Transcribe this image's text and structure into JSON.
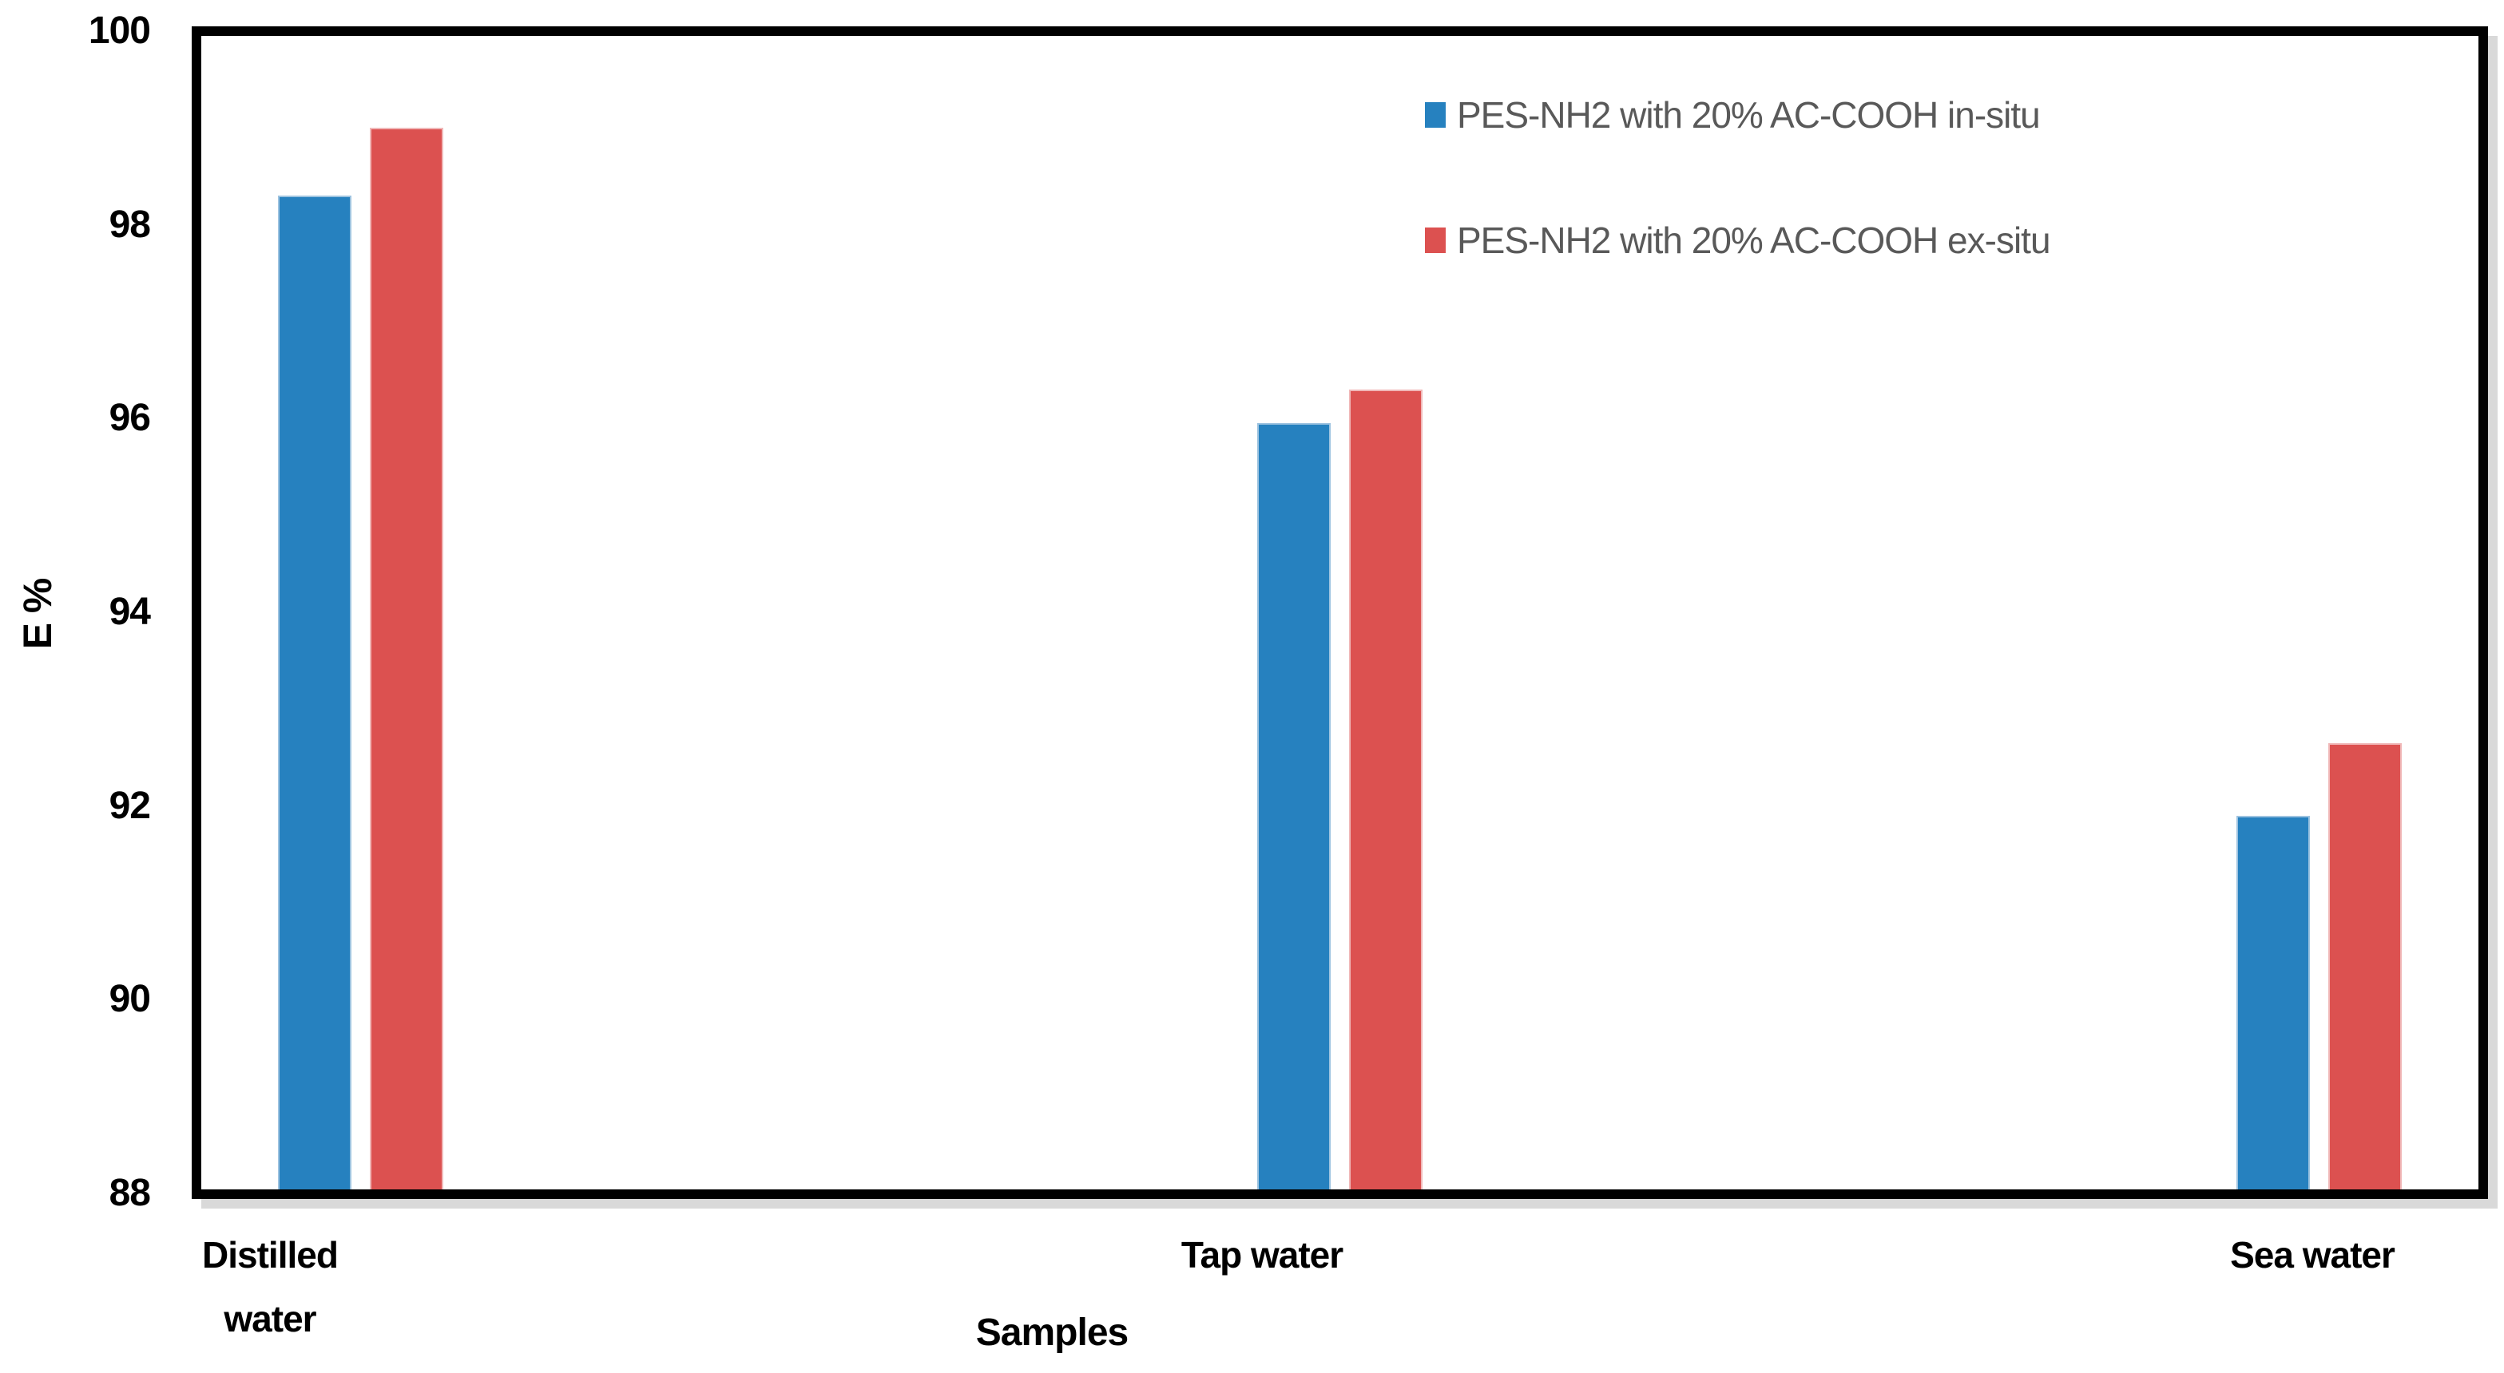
{
  "chart_data": {
    "type": "bar",
    "title": "",
    "xlabel": "Samples",
    "ylabel": "E %",
    "categories": [
      "Distilled water",
      "Tap water",
      "Sea water"
    ],
    "series": [
      {
        "name": "PES-NH2 with 20% AC-COOH in-situ",
        "color": "#2681BF",
        "edge_color": "#9DC3E0",
        "values": [
          98.3,
          95.95,
          91.9
        ]
      },
      {
        "name": "PES-NH2 with 20% AC-COOH ex-situ",
        "color": "#DC5150",
        "edge_color": "#F0B8B8",
        "values": [
          99.0,
          96.3,
          92.65
        ]
      }
    ],
    "ylim": [
      88,
      100
    ],
    "ytick_step": 2,
    "ytick_labels": [
      "88",
      "90",
      "92",
      "94",
      "96",
      "98",
      "100"
    ],
    "grid": false,
    "legend_position": "top-right",
    "colors": {
      "axis": "#000000",
      "frame_shadow": "#d9d9d9",
      "tick_text": "#000000",
      "legend_text": "#595959",
      "background": "#ffffff"
    }
  }
}
